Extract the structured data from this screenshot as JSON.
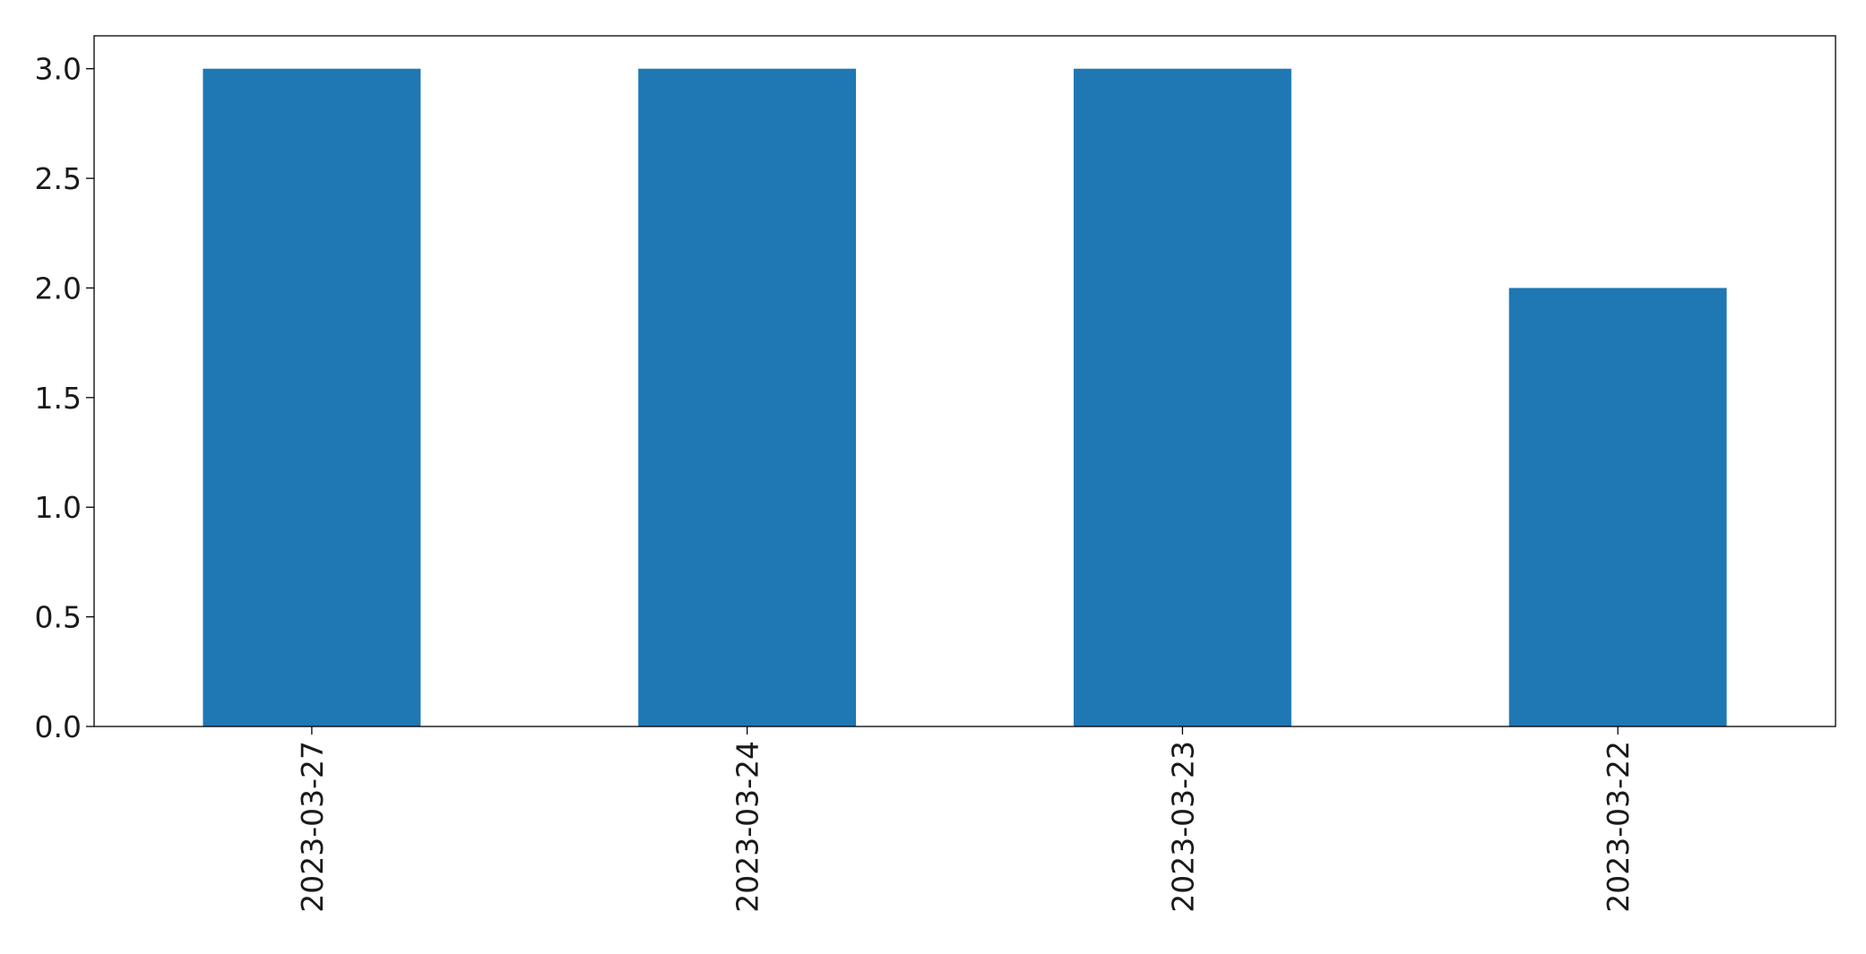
{
  "chart_data": {
    "type": "bar",
    "categories": [
      "2023-03-27",
      "2023-03-24",
      "2023-03-23",
      "2023-03-22"
    ],
    "values": [
      3,
      3,
      3,
      2
    ],
    "title": "",
    "xlabel": "",
    "ylabel": "",
    "ylim": [
      0,
      3.15
    ],
    "yticks": [
      0.0,
      0.5,
      1.0,
      1.5,
      2.0,
      2.5,
      3.0
    ],
    "ytick_labels": [
      "0.0",
      "0.5",
      "1.0",
      "1.5",
      "2.0",
      "2.5",
      "3.0"
    ],
    "grid": false,
    "legend": false,
    "xtick_rotation": "vertical",
    "bar_color": "#1f77b4"
  }
}
